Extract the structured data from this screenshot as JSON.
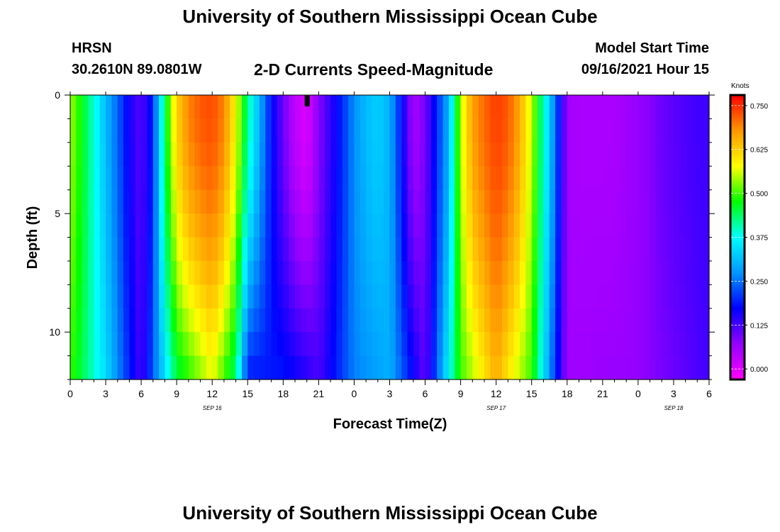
{
  "header": {
    "title_top": "University of Southern Mississippi Ocean Cube",
    "station": "HRSN",
    "coords": "30.2610N  89.0801W",
    "plot_title": "2-D Currents Speed-Magnitude",
    "model_label": "Model Start Time",
    "model_time": "09/16/2021 Hour 15"
  },
  "footer": {
    "title_bottom": "University of Southern Mississippi Ocean Cube"
  },
  "colors": {
    "scale": [
      "#ff00ff",
      "#9400ff",
      "#0000ff",
      "#0096ff",
      "#00ffff",
      "#00ff00",
      "#ffff00",
      "#ff9600",
      "#ff0000"
    ]
  },
  "chart_data": {
    "type": "heatmap",
    "title": "2-D Currents Speed-Magnitude",
    "xlabel": "Forecast Time(Z)",
    "ylabel": "Depth (ft)",
    "x_ticks": [
      "0",
      "3",
      "6",
      "9",
      "12",
      "15",
      "18",
      "21",
      "0",
      "3",
      "6",
      "9",
      "12",
      "15",
      "18",
      "21",
      "0",
      "3",
      "6"
    ],
    "x_range_hours": [
      0,
      54
    ],
    "day_labels": [
      {
        "label": "SEP 16",
        "hour": 12
      },
      {
        "label": "SEP 17",
        "hour": 36
      },
      {
        "label": "SEP 18",
        "hour": 51
      }
    ],
    "y_ticks": [
      "0",
      "5",
      "10"
    ],
    "y_range_ft": [
      0,
      12
    ],
    "depth_levels_ft": [
      0.5,
      1.5,
      2.5,
      3.5,
      4.5,
      5.5,
      6.5,
      7.5,
      8.5,
      9.5,
      10.5,
      11.5
    ],
    "colorbar": {
      "unit": "Knots",
      "min": -0.03,
      "max": 0.78,
      "ticks": [
        "0.000",
        "0.125",
        "0.250",
        "0.375",
        "0.500",
        "0.625",
        "0.750"
      ],
      "tick_values": [
        0,
        0.125,
        0.25,
        0.375,
        0.5,
        0.625,
        0.75
      ]
    },
    "surface_speed_profile_knots": [
      {
        "hour": 0,
        "speed": 0.54
      },
      {
        "hour": 1,
        "speed": 0.47
      },
      {
        "hour": 2,
        "speed": 0.39
      },
      {
        "hour": 3,
        "speed": 0.31
      },
      {
        "hour": 4,
        "speed": 0.24
      },
      {
        "hour": 5,
        "speed": 0.16
      },
      {
        "hour": 6,
        "speed": 0.11
      },
      {
        "hour": 7,
        "speed": 0.2
      },
      {
        "hour": 8,
        "speed": 0.45
      },
      {
        "hour": 9,
        "speed": 0.62
      },
      {
        "hour": 10,
        "speed": 0.69
      },
      {
        "hour": 11,
        "speed": 0.72
      },
      {
        "hour": 12,
        "speed": 0.73
      },
      {
        "hour": 13,
        "speed": 0.69
      },
      {
        "hour": 14,
        "speed": 0.58
      },
      {
        "hour": 15,
        "speed": 0.42
      },
      {
        "hour": 16,
        "speed": 0.3
      },
      {
        "hour": 17,
        "speed": 0.18
      },
      {
        "hour": 18,
        "speed": 0.1
      },
      {
        "hour": 19,
        "speed": 0.03
      },
      {
        "hour": 20,
        "speed": 0.0
      },
      {
        "hour": 21,
        "speed": 0.08
      },
      {
        "hour": 22,
        "speed": 0.14
      },
      {
        "hour": 23,
        "speed": 0.2
      },
      {
        "hour": 24,
        "speed": 0.27
      },
      {
        "hour": 25,
        "speed": 0.31
      },
      {
        "hour": 26,
        "speed": 0.33
      },
      {
        "hour": 27,
        "speed": 0.3
      },
      {
        "hour": 28,
        "speed": 0.18
      },
      {
        "hour": 29,
        "speed": 0.05
      },
      {
        "hour": 30,
        "speed": 0.09
      },
      {
        "hour": 31,
        "speed": 0.2
      },
      {
        "hour": 32,
        "speed": 0.3
      },
      {
        "hour": 33,
        "speed": 0.55
      },
      {
        "hour": 34,
        "speed": 0.67
      },
      {
        "hour": 35,
        "speed": 0.71
      },
      {
        "hour": 36,
        "speed": 0.74
      },
      {
        "hour": 37,
        "speed": 0.72
      },
      {
        "hour": 38,
        "speed": 0.66
      },
      {
        "hour": 39,
        "speed": 0.55
      },
      {
        "hour": 40,
        "speed": 0.4
      },
      {
        "hour": 41,
        "speed": 0.25
      },
      {
        "hour": 42,
        "speed": 0.06
      },
      {
        "hour": 43,
        "speed": 0.05
      },
      {
        "hour": 44,
        "speed": 0.05
      },
      {
        "hour": 45,
        "speed": 0.05
      },
      {
        "hour": 46,
        "speed": 0.05
      },
      {
        "hour": 47,
        "speed": 0.06
      },
      {
        "hour": 48,
        "speed": 0.07
      },
      {
        "hour": 49,
        "speed": 0.08
      },
      {
        "hour": 50,
        "speed": 0.1
      },
      {
        "hour": 51,
        "speed": 0.11
      },
      {
        "hour": 52,
        "speed": 0.12
      },
      {
        "hour": 53,
        "speed": 0.13
      },
      {
        "hour": 54,
        "speed": 0.13
      }
    ],
    "bottom_speed_profile_knots": [
      {
        "hour": 0,
        "speed": 0.5
      },
      {
        "hour": 3,
        "speed": 0.34
      },
      {
        "hour": 6,
        "speed": 0.12
      },
      {
        "hour": 9,
        "speed": 0.46
      },
      {
        "hour": 12,
        "speed": 0.58
      },
      {
        "hour": 14,
        "speed": 0.44
      },
      {
        "hour": 15,
        "speed": 0.2
      },
      {
        "hour": 18,
        "speed": 0.18
      },
      {
        "hour": 21,
        "speed": 0.12
      },
      {
        "hour": 24,
        "speed": 0.26
      },
      {
        "hour": 27,
        "speed": 0.3
      },
      {
        "hour": 30,
        "speed": 0.1
      },
      {
        "hour": 33,
        "speed": 0.5
      },
      {
        "hour": 36,
        "speed": 0.66
      },
      {
        "hour": 39,
        "speed": 0.5
      },
      {
        "hour": 42,
        "speed": 0.06
      },
      {
        "hour": 48,
        "speed": 0.07
      },
      {
        "hour": 54,
        "speed": 0.13
      }
    ],
    "model_start_marker_hour": 20
  }
}
